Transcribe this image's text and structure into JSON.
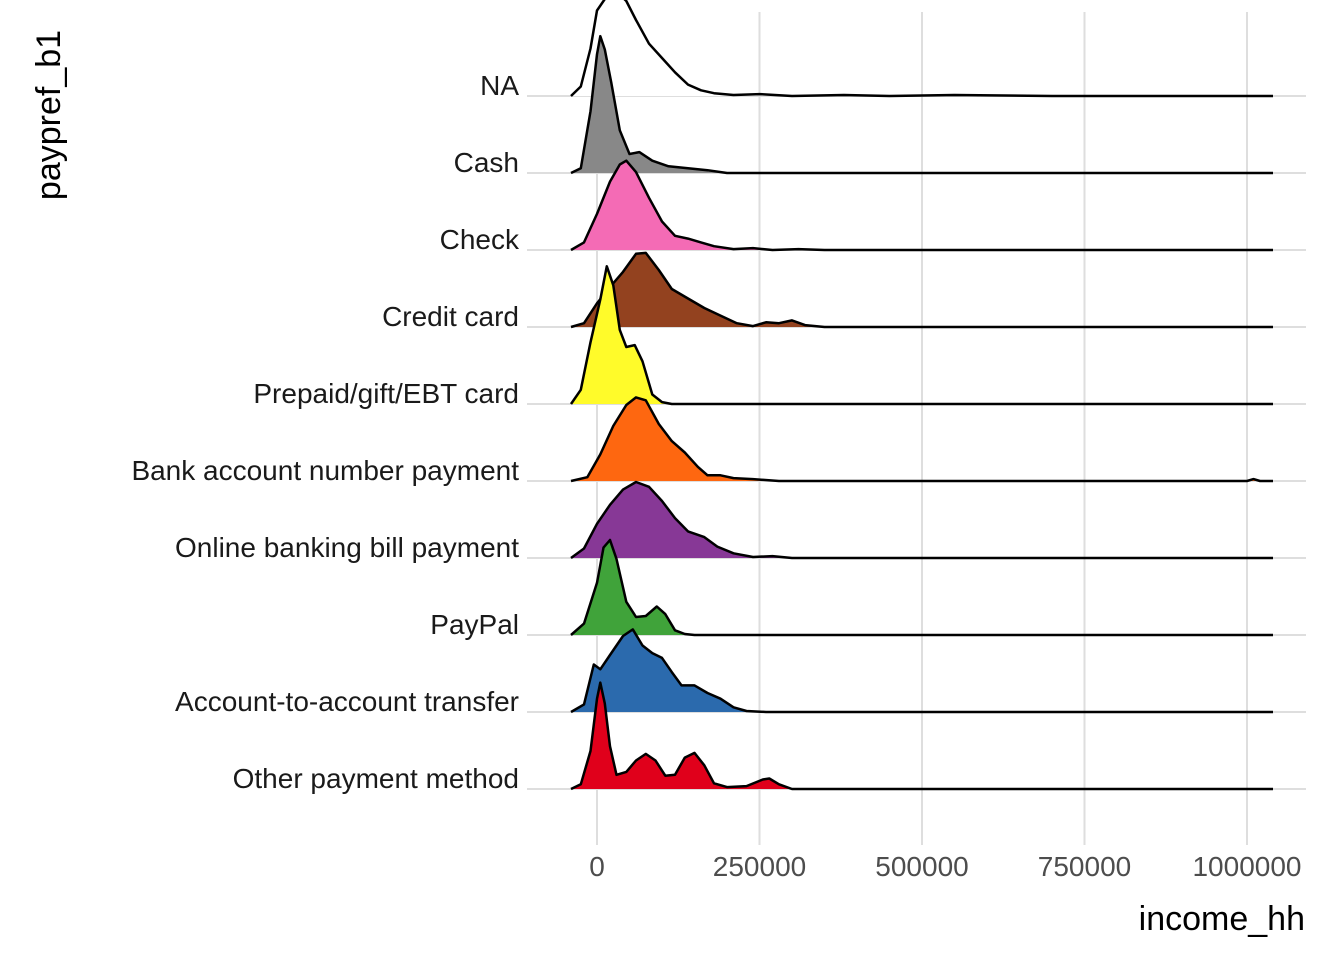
{
  "chart_data": {
    "type": "ridgeline",
    "xlabel": "income_hh",
    "ylabel": "paypref_b1",
    "xlim": [
      -40000,
      1040000
    ],
    "x_ticks": [
      {
        "value": 0,
        "label": "0"
      },
      {
        "value": 250000,
        "label": "250000"
      },
      {
        "value": 500000,
        "label": "500000"
      },
      {
        "value": 750000,
        "label": "750000"
      },
      {
        "value": 1000000,
        "label": "1000000"
      }
    ],
    "grid": true,
    "legend": "none",
    "series": [
      {
        "name": "Other payment method",
        "color": "#e0001b",
        "points": [
          [
            -40000,
            0.0
          ],
          [
            -25000,
            0.05
          ],
          [
            -10000,
            0.4
          ],
          [
            0,
            0.95
          ],
          [
            5000,
            1.12
          ],
          [
            12000,
            0.9
          ],
          [
            20000,
            0.45
          ],
          [
            30000,
            0.15
          ],
          [
            45000,
            0.18
          ],
          [
            60000,
            0.3
          ],
          [
            75000,
            0.37
          ],
          [
            90000,
            0.3
          ],
          [
            105000,
            0.14
          ],
          [
            120000,
            0.15
          ],
          [
            135000,
            0.33
          ],
          [
            150000,
            0.38
          ],
          [
            165000,
            0.25
          ],
          [
            180000,
            0.06
          ],
          [
            200000,
            0.02
          ],
          [
            230000,
            0.03
          ],
          [
            255000,
            0.1
          ],
          [
            265000,
            0.11
          ],
          [
            280000,
            0.05
          ],
          [
            300000,
            0.0
          ],
          [
            1040000,
            0.0
          ]
        ]
      },
      {
        "name": "Account-to-account transfer",
        "color": "#2b6aad",
        "points": [
          [
            -40000,
            0.0
          ],
          [
            -20000,
            0.08
          ],
          [
            -5000,
            0.5
          ],
          [
            5000,
            0.45
          ],
          [
            20000,
            0.6
          ],
          [
            40000,
            0.8
          ],
          [
            55000,
            0.87
          ],
          [
            70000,
            0.7
          ],
          [
            85000,
            0.62
          ],
          [
            100000,
            0.57
          ],
          [
            115000,
            0.42
          ],
          [
            130000,
            0.28
          ],
          [
            150000,
            0.28
          ],
          [
            170000,
            0.2
          ],
          [
            190000,
            0.14
          ],
          [
            210000,
            0.05
          ],
          [
            230000,
            0.01
          ],
          [
            260000,
            0.0
          ],
          [
            1040000,
            0.0
          ]
        ]
      },
      {
        "name": "PayPal",
        "color": "#40a33a",
        "points": [
          [
            -40000,
            0.0
          ],
          [
            -20000,
            0.12
          ],
          [
            0,
            0.55
          ],
          [
            10000,
            0.92
          ],
          [
            20000,
            1.0
          ],
          [
            30000,
            0.8
          ],
          [
            45000,
            0.35
          ],
          [
            60000,
            0.19
          ],
          [
            75000,
            0.2
          ],
          [
            92000,
            0.3
          ],
          [
            105000,
            0.22
          ],
          [
            120000,
            0.05
          ],
          [
            135000,
            0.01
          ],
          [
            150000,
            0.0
          ],
          [
            1040000,
            0.0
          ]
        ]
      },
      {
        "name": "Online banking bill payment",
        "color": "#873896",
        "points": [
          [
            -40000,
            0.0
          ],
          [
            -20000,
            0.1
          ],
          [
            0,
            0.36
          ],
          [
            20000,
            0.56
          ],
          [
            40000,
            0.72
          ],
          [
            60000,
            0.8
          ],
          [
            80000,
            0.75
          ],
          [
            100000,
            0.6
          ],
          [
            120000,
            0.42
          ],
          [
            140000,
            0.28
          ],
          [
            165000,
            0.22
          ],
          [
            185000,
            0.12
          ],
          [
            210000,
            0.05
          ],
          [
            240000,
            0.01
          ],
          [
            270000,
            0.02
          ],
          [
            300000,
            0.0
          ],
          [
            1040000,
            0.0
          ]
        ]
      },
      {
        "name": "Bank account number payment",
        "color": "#fe6710",
        "points": [
          [
            -40000,
            0.0
          ],
          [
            -15000,
            0.04
          ],
          [
            5000,
            0.28
          ],
          [
            25000,
            0.58
          ],
          [
            45000,
            0.8
          ],
          [
            60000,
            0.88
          ],
          [
            75000,
            0.85
          ],
          [
            95000,
            0.6
          ],
          [
            115000,
            0.42
          ],
          [
            135000,
            0.3
          ],
          [
            155000,
            0.15
          ],
          [
            170000,
            0.06
          ],
          [
            190000,
            0.06
          ],
          [
            210000,
            0.03
          ],
          [
            240000,
            0.02
          ],
          [
            280000,
            0.0
          ],
          [
            850000,
            0.0
          ],
          [
            1000000,
            0.0
          ],
          [
            1010000,
            0.02
          ],
          [
            1020000,
            0.0
          ],
          [
            1040000,
            0.0
          ]
        ]
      },
      {
        "name": "Prepaid/gift/EBT card",
        "color": "#fffb2a",
        "points": [
          [
            -40000,
            0.0
          ],
          [
            -25000,
            0.15
          ],
          [
            -10000,
            0.65
          ],
          [
            5000,
            1.1
          ],
          [
            15000,
            1.45
          ],
          [
            25000,
            1.25
          ],
          [
            35000,
            0.78
          ],
          [
            45000,
            0.6
          ],
          [
            58000,
            0.62
          ],
          [
            70000,
            0.45
          ],
          [
            85000,
            0.1
          ],
          [
            100000,
            0.02
          ],
          [
            115000,
            0.0
          ],
          [
            1040000,
            0.0
          ]
        ]
      },
      {
        "name": "Credit card",
        "color": "#93421f",
        "points": [
          [
            -40000,
            0.0
          ],
          [
            -20000,
            0.04
          ],
          [
            0,
            0.25
          ],
          [
            20000,
            0.42
          ],
          [
            40000,
            0.58
          ],
          [
            60000,
            0.77
          ],
          [
            75000,
            0.78
          ],
          [
            95000,
            0.6
          ],
          [
            115000,
            0.4
          ],
          [
            140000,
            0.3
          ],
          [
            165000,
            0.2
          ],
          [
            190000,
            0.12
          ],
          [
            215000,
            0.04
          ],
          [
            240000,
            0.01
          ],
          [
            260000,
            0.05
          ],
          [
            280000,
            0.04
          ],
          [
            300000,
            0.07
          ],
          [
            320000,
            0.02
          ],
          [
            350000,
            0.0
          ],
          [
            600000,
            0.0
          ],
          [
            780000,
            0.0
          ],
          [
            1040000,
            0.0
          ]
        ]
      },
      {
        "name": "Check",
        "color": "#f46bb5",
        "points": [
          [
            -40000,
            0.0
          ],
          [
            -20000,
            0.08
          ],
          [
            0,
            0.38
          ],
          [
            20000,
            0.72
          ],
          [
            35000,
            0.9
          ],
          [
            45000,
            0.94
          ],
          [
            60000,
            0.82
          ],
          [
            80000,
            0.55
          ],
          [
            100000,
            0.3
          ],
          [
            120000,
            0.15
          ],
          [
            140000,
            0.12
          ],
          [
            160000,
            0.08
          ],
          [
            180000,
            0.04
          ],
          [
            210000,
            0.01
          ],
          [
            240000,
            0.02
          ],
          [
            270000,
            0.0
          ],
          [
            310000,
            0.01
          ],
          [
            350000,
            0.0
          ],
          [
            1040000,
            0.0
          ]
        ]
      },
      {
        "name": "Cash",
        "color": "#888888",
        "points": [
          [
            -40000,
            0.0
          ],
          [
            -25000,
            0.05
          ],
          [
            -10000,
            0.65
          ],
          [
            0,
            1.25
          ],
          [
            5000,
            1.44
          ],
          [
            12000,
            1.3
          ],
          [
            22000,
            0.95
          ],
          [
            35000,
            0.45
          ],
          [
            50000,
            0.2
          ],
          [
            65000,
            0.22
          ],
          [
            85000,
            0.13
          ],
          [
            110000,
            0.07
          ],
          [
            140000,
            0.05
          ],
          [
            170000,
            0.03
          ],
          [
            200000,
            0.0
          ],
          [
            1040000,
            0.0
          ]
        ]
      },
      {
        "name": "NA",
        "color": "#ffffff",
        "points": [
          [
            -40000,
            0.0
          ],
          [
            -25000,
            0.1
          ],
          [
            -10000,
            0.5
          ],
          [
            0,
            0.9
          ],
          [
            15000,
            1.05
          ],
          [
            30000,
            1.1
          ],
          [
            45000,
            1.0
          ],
          [
            60000,
            0.8
          ],
          [
            80000,
            0.55
          ],
          [
            100000,
            0.4
          ],
          [
            120000,
            0.25
          ],
          [
            140000,
            0.12
          ],
          [
            160000,
            0.06
          ],
          [
            180000,
            0.03
          ],
          [
            210000,
            0.01
          ],
          [
            250000,
            0.02
          ],
          [
            300000,
            0.0
          ],
          [
            380000,
            0.01
          ],
          [
            450000,
            0.0
          ],
          [
            550000,
            0.01
          ],
          [
            700000,
            0.0
          ],
          [
            1040000,
            0.0
          ]
        ]
      }
    ]
  }
}
